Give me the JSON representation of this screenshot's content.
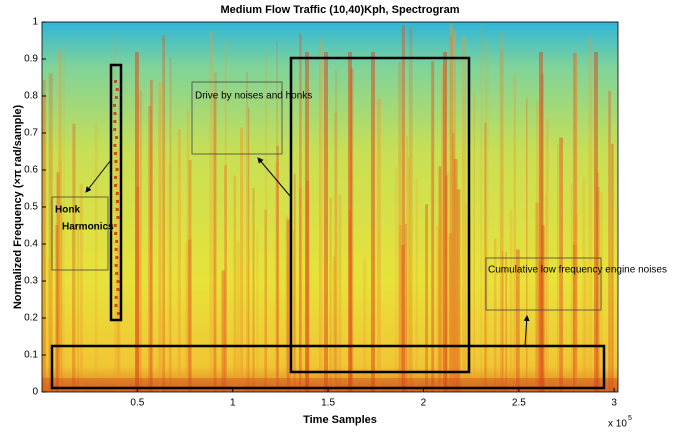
{
  "chart_data": {
    "type": "spectrogram",
    "title": "Medium Flow Traffic (10,40)Kph, Spectrogram",
    "xlabel": "Time Samples",
    "ylabel": "Normalized Frequency  (×π rad/sample)",
    "x_multiplier": "x 10",
    "x_multiplier_exponent": "5",
    "xlim": [
      0,
      3.02
    ],
    "xticks": [
      0.5,
      1,
      1.5,
      2,
      2.5,
      3
    ],
    "ylim": [
      0,
      1
    ],
    "yticks": [
      0,
      0.1,
      0.2,
      0.3,
      0.4,
      0.5,
      0.6,
      0.7,
      0.8,
      0.9,
      1
    ],
    "annotations": [
      "Drive by noises and honks",
      "Honk",
      "Harmonics",
      "Cumulative low frequency engine noises"
    ]
  }
}
